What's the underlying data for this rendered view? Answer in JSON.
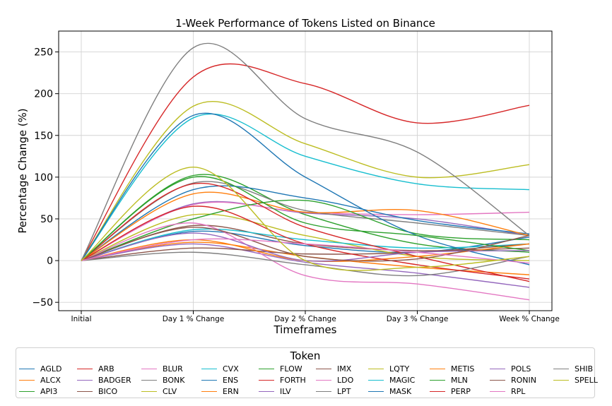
{
  "chart_data": {
    "type": "line",
    "title": "1-Week Performance of Tokens Listed on Binance",
    "xlabel": "Timeframes",
    "ylabel": "Percentage Change (%)",
    "categories": [
      "Initial",
      "Day 1 % Change",
      "Day 2 % Change",
      "Day 3 % Change",
      "Week % Change"
    ],
    "ylim": [
      -60,
      275
    ],
    "yticks": [
      -50,
      0,
      50,
      100,
      150,
      200,
      250
    ],
    "grid": true,
    "legend_title": "Token",
    "legend_position": "bottom",
    "series": [
      {
        "name": "AGLD",
        "color": "#1f77b4",
        "values": [
          0,
          35,
          18,
          10,
          28
        ]
      },
      {
        "name": "ALCX",
        "color": "#ff7f0e",
        "values": [
          0,
          22,
          5,
          -8,
          -17
        ]
      },
      {
        "name": "API3",
        "color": "#2ca02c",
        "values": [
          0,
          102,
          55,
          20,
          10
        ]
      },
      {
        "name": "ARB",
        "color": "#d62728",
        "values": [
          0,
          220,
          212,
          165,
          186
        ]
      },
      {
        "name": "BADGER",
        "color": "#9467bd",
        "values": [
          0,
          68,
          57,
          50,
          30
        ]
      },
      {
        "name": "BICO",
        "color": "#8c564b",
        "values": [
          0,
          42,
          20,
          12,
          15
        ]
      },
      {
        "name": "BLUR",
        "color": "#e377c2",
        "values": [
          0,
          67,
          58,
          55,
          58
        ]
      },
      {
        "name": "BONK",
        "color": "#7f7f7f",
        "values": [
          0,
          93,
          60,
          45,
          30
        ]
      },
      {
        "name": "CLV",
        "color": "#bcbd22",
        "values": [
          0,
          55,
          30,
          5,
          0
        ]
      },
      {
        "name": "CVX",
        "color": "#17becf",
        "values": [
          0,
          37,
          25,
          15,
          20
        ]
      },
      {
        "name": "ENS",
        "color": "#1f77b4",
        "values": [
          0,
          85,
          75,
          48,
          32
        ]
      },
      {
        "name": "ERN",
        "color": "#ff7f0e",
        "values": [
          0,
          80,
          58,
          60,
          30
        ]
      },
      {
        "name": "FLOW",
        "color": "#2ca02c",
        "values": [
          0,
          50,
          72,
          32,
          25
        ]
      },
      {
        "name": "FORTH",
        "color": "#d62728",
        "values": [
          0,
          92,
          40,
          5,
          -25
        ]
      },
      {
        "name": "ILV",
        "color": "#9467bd",
        "values": [
          0,
          20,
          -2,
          -15,
          -32
        ]
      },
      {
        "name": "IMX",
        "color": "#8c564b",
        "values": [
          0,
          15,
          8,
          10,
          20
        ]
      },
      {
        "name": "LDO",
        "color": "#e377c2",
        "values": [
          0,
          45,
          -18,
          -28,
          -47
        ]
      },
      {
        "name": "LPT",
        "color": "#7f7f7f",
        "values": [
          0,
          10,
          -5,
          -18,
          5
        ]
      },
      {
        "name": "LQTY",
        "color": "#bcbd22",
        "values": [
          0,
          185,
          140,
          100,
          115
        ]
      },
      {
        "name": "MAGIC",
        "color": "#17becf",
        "values": [
          0,
          171,
          125,
          92,
          85
        ]
      },
      {
        "name": "MASK",
        "color": "#1f77b4",
        "values": [
          0,
          174,
          100,
          30,
          -5
        ]
      },
      {
        "name": "METIS",
        "color": "#ff7f0e",
        "values": [
          0,
          25,
          0,
          5,
          20
        ]
      },
      {
        "name": "MLN",
        "color": "#2ca02c",
        "values": [
          0,
          100,
          45,
          30,
          12
        ]
      },
      {
        "name": "PERP",
        "color": "#d62728",
        "values": [
          0,
          65,
          20,
          -5,
          -22
        ]
      },
      {
        "name": "POLS",
        "color": "#9467bd",
        "values": [
          0,
          33,
          0,
          10,
          12
        ]
      },
      {
        "name": "RONIN",
        "color": "#8c564b",
        "values": [
          0,
          40,
          5,
          2,
          30
        ]
      },
      {
        "name": "RPL",
        "color": "#e377c2",
        "values": [
          0,
          25,
          20,
          10,
          -3
        ]
      },
      {
        "name": "SHIB",
        "color": "#7f7f7f",
        "values": [
          0,
          255,
          170,
          130,
          30
        ]
      },
      {
        "name": "SPELL",
        "color": "#bcbd22",
        "values": [
          0,
          112,
          0,
          -8,
          5
        ]
      }
    ]
  }
}
